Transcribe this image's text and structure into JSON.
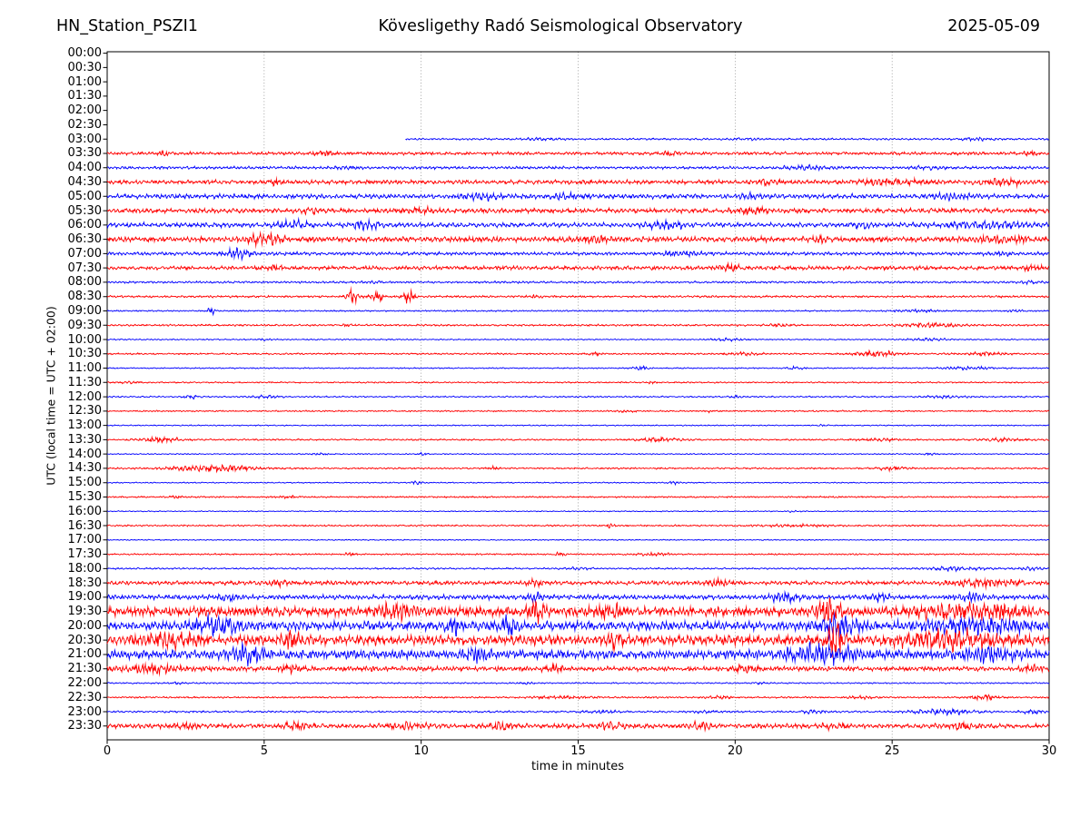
{
  "header": {
    "station": "HN_Station_PSZI1",
    "observatory": "Kövesligethy Radó Seismological Observatory",
    "date": "2025-05-09"
  },
  "axes": {
    "ylabel": "UTC (local time = UTC + 02:00)",
    "xlabel": "time in minutes",
    "xmin": 0,
    "xmax": 30,
    "xticks": [
      0,
      5,
      10,
      15,
      20,
      25,
      30
    ],
    "grid_minutes": [
      5,
      10,
      15,
      20,
      25
    ],
    "grid_style": "dotted"
  },
  "colors": {
    "red": "#ff0000",
    "blue": "#0000ff",
    "grid": "#808080",
    "frame": "#000000",
    "background": "#ffffff"
  },
  "chart_data": {
    "type": "line",
    "subtype": "helicorder-day-plot",
    "minutes_per_row": 30,
    "rows": [
      {
        "label": "00:00"
      },
      {
        "label": "00:30"
      },
      {
        "label": "01:00"
      },
      {
        "label": "01:30"
      },
      {
        "label": "02:00"
      },
      {
        "label": "02:30"
      },
      {
        "label": "03:00",
        "color": "blue",
        "start": 9.5,
        "base": 0.9,
        "events": [
          [
            13,
            14.6,
            1.0
          ],
          [
            19.4,
            21,
            0.8
          ],
          [
            26.8,
            28.6,
            1.0
          ]
        ]
      },
      {
        "label": "03:30",
        "color": "red",
        "base": 1.3,
        "events": [
          [
            1.6,
            2.0,
            1.8
          ],
          [
            6.3,
            7.4,
            1.4
          ],
          [
            17.4,
            18.4,
            1.4
          ],
          [
            28.8,
            30,
            1.2
          ]
        ]
      },
      {
        "label": "04:00",
        "color": "blue",
        "base": 1.3,
        "events": [
          [
            7,
            8.2,
            1.1
          ],
          [
            21,
            23.6,
            1.4
          ],
          [
            25.4,
            27,
            1.2
          ]
        ]
      },
      {
        "label": "04:30",
        "color": "red",
        "base": 1.7,
        "events": [
          [
            5,
            5.7,
            2.0
          ],
          [
            20.4,
            21.6,
            1.8
          ],
          [
            23.4,
            26.6,
            2.0
          ],
          [
            27.4,
            29.6,
            2.2
          ]
        ]
      },
      {
        "label": "05:00",
        "color": "blue",
        "base": 2.2,
        "events": [
          [
            11,
            13,
            2.4
          ],
          [
            13.9,
            15.1,
            2.3
          ],
          [
            19.9,
            21.1,
            1.8
          ],
          [
            25.9,
            28,
            1.8
          ]
        ]
      },
      {
        "label": "05:30",
        "color": "red",
        "base": 2.0,
        "events": [
          [
            6,
            7.1,
            1.6
          ],
          [
            9.4,
            10.6,
            1.6
          ],
          [
            19.4,
            21.6,
            1.8
          ]
        ]
      },
      {
        "label": "06:00",
        "color": "blue",
        "base": 2.2,
        "events": [
          [
            5.2,
            6.6,
            3.4
          ],
          [
            7.4,
            9.1,
            2.8
          ],
          [
            16.7,
            18.9,
            2.6
          ],
          [
            23.4,
            24.6,
            2.3
          ],
          [
            26,
            30,
            2.3
          ]
        ]
      },
      {
        "label": "06:30",
        "color": "red",
        "base": 2.2,
        "events": [
          [
            4.2,
            5.8,
            4.3
          ],
          [
            14.7,
            16.1,
            2.3
          ],
          [
            22.4,
            23.1,
            1.8
          ],
          [
            27,
            30,
            2.3
          ]
        ]
      },
      {
        "label": "07:00",
        "color": "blue",
        "base": 1.6,
        "events": [
          [
            3.4,
            4.9,
            3.8
          ],
          [
            17.4,
            19.1,
            1.9
          ],
          [
            27.9,
            29.1,
            1.4
          ]
        ]
      },
      {
        "label": "07:30",
        "color": "red",
        "base": 1.6,
        "events": [
          [
            5.1,
            5.7,
            1.7
          ],
          [
            19.2,
            20.4,
            2.0
          ],
          [
            28.9,
            30,
            1.4
          ]
        ]
      },
      {
        "label": "08:00",
        "color": "blue",
        "base": 1.0,
        "events": [
          [
            7.9,
            9.1,
            0.8
          ],
          [
            28.9,
            30,
            1.0
          ]
        ]
      },
      {
        "label": "08:30",
        "color": "red",
        "base": 0.9,
        "events": [
          [
            7.5,
            8.1,
            6.2
          ],
          [
            8.3,
            8.9,
            4.8
          ],
          [
            9.3,
            9.9,
            5.8
          ],
          [
            13.4,
            13.9,
            1.2
          ]
        ]
      },
      {
        "label": "09:00",
        "color": "blue",
        "base": 0.7,
        "events": [
          [
            3.1,
            3.5,
            3.3
          ],
          [
            24.7,
            26.7,
            1.1
          ],
          [
            28.5,
            29.3,
            1.1
          ]
        ]
      },
      {
        "label": "09:30",
        "color": "red",
        "base": 0.8,
        "events": [
          [
            7.3,
            8,
            1.0
          ],
          [
            20.9,
            22.1,
            1.0
          ],
          [
            24.7,
            27.7,
            1.5
          ]
        ]
      },
      {
        "label": "10:00",
        "color": "blue",
        "base": 0.6,
        "events": [
          [
            4.7,
            5.3,
            0.8
          ],
          [
            18.9,
            20.6,
            1.0
          ],
          [
            25.2,
            27.1,
            1.2
          ]
        ]
      },
      {
        "label": "10:30",
        "color": "red",
        "base": 0.7,
        "events": [
          [
            15.2,
            15.9,
            1.0
          ],
          [
            19.4,
            21.1,
            1.0
          ],
          [
            23.4,
            25.6,
            2.1
          ],
          [
            26.9,
            29.1,
            1.2
          ]
        ]
      },
      {
        "label": "11:00",
        "color": "blue",
        "base": 0.6,
        "events": [
          [
            16.5,
            17.5,
            1.4
          ],
          [
            21.4,
            22.4,
            1.2
          ],
          [
            26.2,
            28.7,
            1.3
          ]
        ]
      },
      {
        "label": "11:30",
        "color": "red",
        "base": 0.6,
        "events": [
          [
            0.2,
            1.3,
            0.8
          ],
          [
            17.1,
            17.6,
            0.8
          ]
        ]
      },
      {
        "label": "12:00",
        "color": "blue",
        "base": 0.7,
        "events": [
          [
            2.3,
            3.1,
            1.5
          ],
          [
            4.3,
            5.7,
            1.1
          ],
          [
            19.7,
            20.3,
            0.9
          ],
          [
            25.7,
            27.7,
            1.0
          ]
        ]
      },
      {
        "label": "12:30",
        "color": "red",
        "base": 0.6,
        "events": [
          [
            15.9,
            17.1,
            0.7
          ],
          [
            19,
            19.5,
            0.9
          ]
        ]
      },
      {
        "label": "13:00",
        "color": "blue",
        "base": 0.55,
        "events": [
          [
            22.4,
            23.1,
            0.7
          ]
        ]
      },
      {
        "label": "13:30",
        "color": "red",
        "base": 0.7,
        "events": [
          [
            0.7,
            2.7,
            1.9
          ],
          [
            16.4,
            18.7,
            1.5
          ],
          [
            23.7,
            25.5,
            1.1
          ],
          [
            27.4,
            29.6,
            1.1
          ]
        ]
      },
      {
        "label": "14:00",
        "color": "blue",
        "base": 0.55,
        "events": [
          [
            6.5,
            7.1,
            0.9
          ],
          [
            9.8,
            10.3,
            0.9
          ],
          [
            25.9,
            26.5,
            0.8
          ]
        ]
      },
      {
        "label": "14:30",
        "color": "red",
        "base": 0.7,
        "events": [
          [
            1.1,
            5.7,
            2.4
          ],
          [
            12,
            12.6,
            1.0
          ],
          [
            24.3,
            25.7,
            1.7
          ]
        ]
      },
      {
        "label": "15:00",
        "color": "blue",
        "base": 0.55,
        "events": [
          [
            9.6,
            10.1,
            1.7
          ],
          [
            17.8,
            18.3,
            1.2
          ]
        ]
      },
      {
        "label": "15:30",
        "color": "red",
        "base": 0.65,
        "events": [
          [
            1.9,
            2.5,
            0.9
          ],
          [
            5.3,
            6.3,
            0.9
          ]
        ]
      },
      {
        "label": "16:00",
        "color": "blue",
        "base": 0.5,
        "events": [
          [
            21.6,
            22.1,
            0.8
          ]
        ]
      },
      {
        "label": "16:30",
        "color": "red",
        "base": 0.7,
        "events": [
          [
            15.8,
            16.3,
            1.7
          ],
          [
            20,
            24,
            0.8
          ]
        ]
      },
      {
        "label": "17:00",
        "color": "blue",
        "base": 0.5,
        "events": []
      },
      {
        "label": "17:30",
        "color": "red",
        "base": 0.65,
        "events": [
          [
            7.5,
            8,
            1.3
          ],
          [
            14.2,
            14.7,
            2.1
          ],
          [
            16.4,
            18.3,
            1.1
          ]
        ]
      },
      {
        "label": "18:00",
        "color": "blue",
        "base": 0.8,
        "events": [
          [
            14.4,
            15.6,
            1.0
          ],
          [
            25.4,
            28.6,
            1.7
          ],
          [
            28.9,
            30,
            1.4
          ]
        ]
      },
      {
        "label": "18:30",
        "color": "red",
        "base": 1.7,
        "events": [
          [
            4.9,
            6.1,
            2.1
          ],
          [
            13.2,
            14,
            2.9
          ],
          [
            18.9,
            20.1,
            2.1
          ],
          [
            26.4,
            29.6,
            2.5
          ]
        ]
      },
      {
        "label": "19:00",
        "color": "blue",
        "base": 2.2,
        "events": [
          [
            3.4,
            4.3,
            2.9
          ],
          [
            13.3,
            14,
            3.9
          ],
          [
            20.9,
            22.3,
            3.9
          ],
          [
            24.2,
            25.1,
            2.9
          ],
          [
            26.9,
            28.1,
            2.9
          ]
        ]
      },
      {
        "label": "19:30",
        "color": "red",
        "base": 3.8,
        "events": [
          [
            8.4,
            10.1,
            5.3
          ],
          [
            13.3,
            14.1,
            6.8
          ],
          [
            15.4,
            16.6,
            4.8
          ],
          [
            22.3,
            23.7,
            8.7
          ],
          [
            24.9,
            30,
            5.3
          ]
        ]
      },
      {
        "label": "20:00",
        "color": "blue",
        "base": 4.2,
        "events": [
          [
            2.2,
            4.7,
            6.3
          ],
          [
            10.7,
            11.4,
            7.8
          ],
          [
            12.3,
            13.3,
            6.8
          ],
          [
            22.3,
            24.3,
            8.7
          ],
          [
            25.4,
            30,
            6.3
          ]
        ]
      },
      {
        "label": "20:30",
        "color": "red",
        "base": 4.0,
        "events": [
          [
            0.4,
            3.1,
            5.8
          ],
          [
            5.4,
            6.3,
            5.8
          ],
          [
            15.7,
            16.5,
            5.8
          ],
          [
            22.8,
            23.6,
            13.5
          ],
          [
            24.4,
            29.1,
            6.3
          ]
        ]
      },
      {
        "label": "21:00",
        "color": "blue",
        "base": 4.0,
        "events": [
          [
            3.7,
            5.3,
            6.8
          ],
          [
            11.2,
            12.3,
            6.8
          ],
          [
            20.9,
            24.6,
            6.8
          ],
          [
            26.4,
            29.6,
            5.8
          ]
        ]
      },
      {
        "label": "21:30",
        "color": "red",
        "base": 2.0,
        "events": [
          [
            0.2,
            2.9,
            3.1
          ],
          [
            5.2,
            6.4,
            2.9
          ],
          [
            13.8,
            14.6,
            2.9
          ],
          [
            19.4,
            21.1,
            2.1
          ],
          [
            28.9,
            30,
            1.9
          ]
        ]
      },
      {
        "label": "22:00",
        "color": "blue",
        "base": 0.7,
        "events": [
          [
            1.9,
            2.5,
            0.9
          ],
          [
            13.1,
            13.7,
            0.8
          ],
          [
            20.4,
            21.1,
            0.8
          ]
        ]
      },
      {
        "label": "22:30",
        "color": "red",
        "base": 0.7,
        "events": [
          [
            12.9,
            16.1,
            0.9
          ],
          [
            18.9,
            20.1,
            1.1
          ],
          [
            23.4,
            24.6,
            1.1
          ],
          [
            27.2,
            28.7,
            2.1
          ]
        ]
      },
      {
        "label": "23:00",
        "color": "blue",
        "base": 0.9,
        "events": [
          [
            14.9,
            16.6,
            1.1
          ],
          [
            18.4,
            19.6,
            1.3
          ],
          [
            21.9,
            23.1,
            1.4
          ],
          [
            24.9,
            28.3,
            2.1
          ],
          [
            28.9,
            30,
            1.5
          ]
        ]
      },
      {
        "label": "23:30",
        "color": "red",
        "base": 1.9,
        "events": [
          [
            1.9,
            3.1,
            2.1
          ],
          [
            5.4,
            6.6,
            2.9
          ],
          [
            8.7,
            10.6,
            2.3
          ],
          [
            11.9,
            13.1,
            2.3
          ],
          [
            15.4,
            16.6,
            2.1
          ],
          [
            18.4,
            19.4,
            2.5
          ],
          [
            22.4,
            23.6,
            2.1
          ],
          [
            26.4,
            28.1,
            1.9
          ]
        ]
      }
    ]
  }
}
